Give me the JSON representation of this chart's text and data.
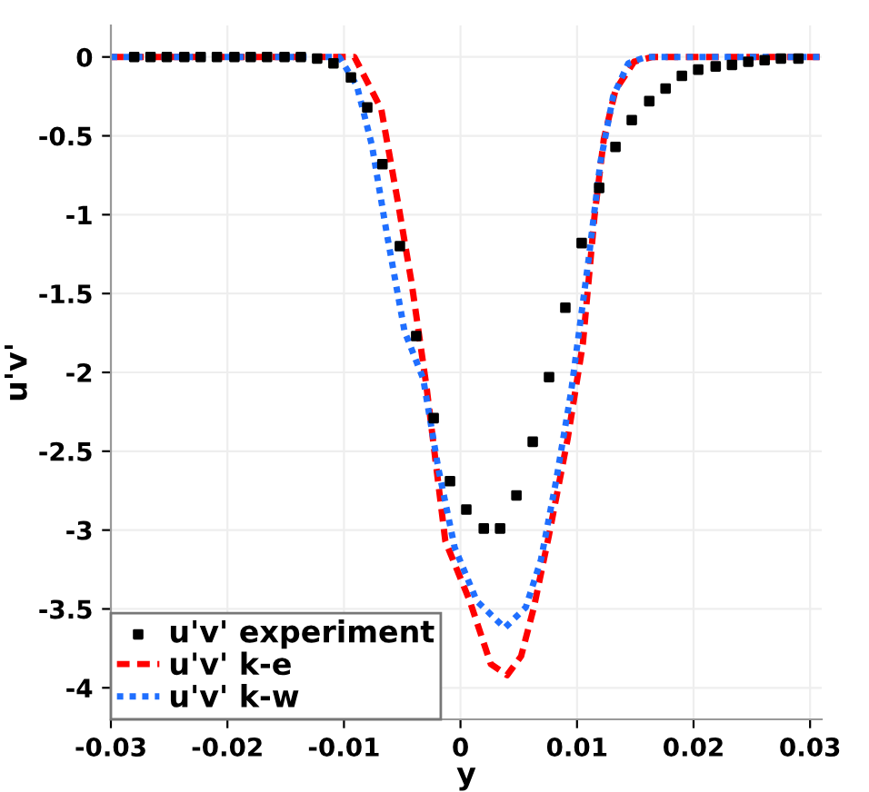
{
  "chart_data": {
    "type": "line",
    "xlabel": "y",
    "ylabel": "u'v'",
    "xlim": [
      -0.03,
      0.031
    ],
    "ylim": [
      -4.2,
      0.2
    ],
    "xticks": [
      -0.03,
      -0.02,
      -0.01,
      0,
      0.01,
      0.02,
      0.03
    ],
    "yticks": [
      0,
      -0.5,
      -1,
      -1.5,
      -2,
      -2.5,
      -3,
      -3.5,
      -4
    ],
    "grid": true,
    "legend": "bottom left",
    "series": [
      {
        "name": "u'v' experiment",
        "type": "scatter",
        "marker": "square",
        "color": "#000000",
        "x": [
          -0.028,
          -0.0266,
          -0.0252,
          -0.0237,
          -0.0223,
          -0.0209,
          -0.0194,
          -0.018,
          -0.0166,
          -0.0151,
          -0.0137,
          -0.0123,
          -0.0109,
          -0.0094,
          -0.008,
          -0.0067,
          -0.0052,
          -0.0038,
          -0.0023,
          -0.0009,
          0.0005,
          0.002,
          0.0034,
          0.0048,
          0.0062,
          0.0076,
          0.009,
          0.0104,
          0.0119,
          0.0133,
          0.0147,
          0.0162,
          0.0176,
          0.019,
          0.0204,
          0.0219,
          0.0233,
          0.0247,
          0.0261,
          0.0275,
          0.029
        ],
        "values": [
          0,
          0,
          0,
          0,
          0,
          0,
          0,
          0,
          0,
          0,
          0,
          -0.01,
          -0.04,
          -0.13,
          -0.32,
          -0.68,
          -1.2,
          -1.77,
          -2.29,
          -2.69,
          -2.87,
          -2.99,
          -2.99,
          -2.78,
          -2.44,
          -2.03,
          -1.59,
          -1.18,
          -0.83,
          -0.57,
          -0.4,
          -0.28,
          -0.2,
          -0.12,
          -0.08,
          -0.06,
          -0.05,
          -0.03,
          -0.02,
          -0.01,
          -0.01
        ]
      },
      {
        "name": "u'v' k-e",
        "line_style": "dashed",
        "color": "#ff0000",
        "x": [
          -0.03,
          -0.0091,
          -0.0068,
          -0.0053,
          -0.0042,
          -0.0029,
          -0.0013,
          0.0008,
          0.0026,
          0.004,
          0.0052,
          0.0063,
          0.0076,
          0.0092,
          0.0105,
          0.0115,
          0.0123,
          0.0133,
          0.0149,
          0.0165,
          0.031
        ],
        "values": [
          0,
          0,
          -0.33,
          -0.95,
          -1.43,
          -2.1,
          -3.07,
          -3.45,
          -3.85,
          -3.92,
          -3.8,
          -3.49,
          -3.03,
          -2.42,
          -1.82,
          -1.01,
          -0.52,
          -0.21,
          -0.03,
          0,
          0
        ]
      },
      {
        "name": "u'v' k-w",
        "line_style": "dotted",
        "color": "#1f6fff",
        "x": [
          -0.03,
          -0.0104,
          -0.0089,
          -0.0076,
          -0.0063,
          -0.0048,
          -0.0032,
          -0.0019,
          -0.0005,
          0.0014,
          0.0038,
          0.0056,
          0.0069,
          0.0082,
          0.0095,
          0.011,
          0.012,
          0.0131,
          0.0144,
          0.0159,
          0.031
        ],
        "values": [
          0,
          0,
          -0.18,
          -0.56,
          -1.13,
          -1.74,
          -2.04,
          -2.61,
          -3.11,
          -3.45,
          -3.62,
          -3.49,
          -3.19,
          -2.69,
          -2.12,
          -1.28,
          -0.67,
          -0.25,
          -0.04,
          0,
          0
        ]
      }
    ]
  }
}
